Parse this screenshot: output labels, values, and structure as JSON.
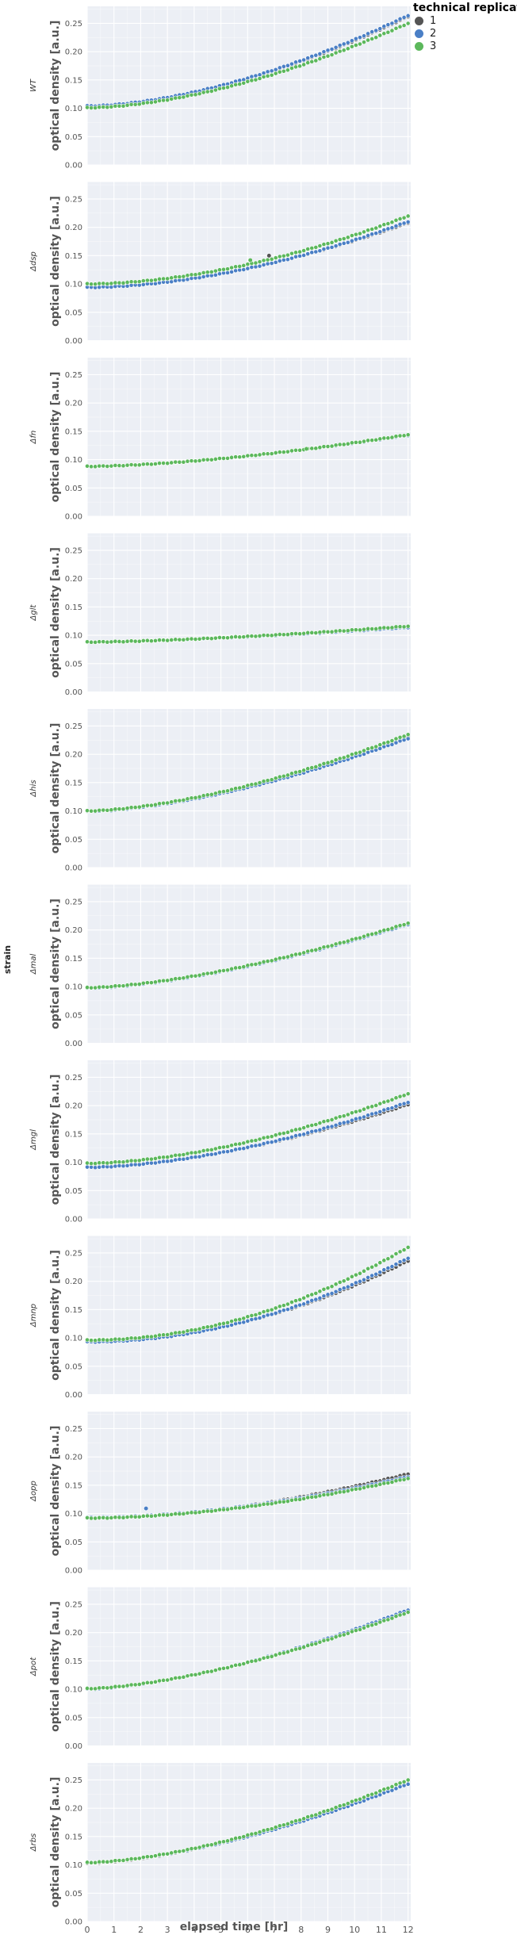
{
  "chart_data": {
    "type": "scatter",
    "facet_by": "strain",
    "xlabel": "elapsed time [hr]",
    "ylabel": "optical density [a.u.]",
    "strip_label": "strain",
    "xlim": [
      0,
      12.1
    ],
    "ylim": [
      0,
      0.28
    ],
    "x_ticks": [
      0,
      1,
      2,
      3,
      4,
      5,
      6,
      7,
      8,
      9,
      10,
      11,
      12
    ],
    "y_ticks": [
      0.0,
      0.05,
      0.1,
      0.15,
      0.2,
      0.25
    ],
    "grid": true,
    "legend": {
      "title": "technical replicate",
      "placement": "top-right",
      "entries": [
        {
          "label": "1",
          "color": "#555555"
        },
        {
          "label": "2",
          "color": "#4a7fc6"
        },
        {
          "label": "3",
          "color": "#5cb85c"
        }
      ]
    },
    "colors": {
      "panel_background": "#eceff5",
      "gridline": "#ffffff",
      "axis_text": "#555555"
    },
    "panels": [
      {
        "strain": "WT",
        "x_range": [
          0,
          12
        ],
        "series": [
          {
            "name": "1",
            "start": 0.103,
            "end": 0.262,
            "curvature": 1.7
          },
          {
            "name": "2",
            "start": 0.104,
            "end": 0.264,
            "curvature": 1.7
          },
          {
            "name": "3",
            "start": 0.101,
            "end": 0.25,
            "curvature": 1.7
          }
        ]
      },
      {
        "strain": "Δdsp",
        "x_range": [
          0,
          12
        ],
        "series": [
          {
            "name": "1",
            "start": 0.095,
            "end": 0.208,
            "curvature": 1.8
          },
          {
            "name": "2",
            "start": 0.094,
            "end": 0.21,
            "curvature": 1.8
          },
          {
            "name": "3",
            "start": 0.1,
            "end": 0.22,
            "curvature": 1.8
          }
        ],
        "outliers": [
          {
            "name": "1",
            "x": 6.8,
            "y": 0.15
          },
          {
            "name": "3",
            "x": 6.1,
            "y": 0.142
          }
        ]
      },
      {
        "strain": "Δfn",
        "x_range": [
          0,
          12
        ],
        "series": [
          {
            "name": "1",
            "start": 0.088,
            "end": 0.143,
            "curvature": 1.6
          },
          {
            "name": "2",
            "start": 0.088,
            "end": 0.143,
            "curvature": 1.6
          },
          {
            "name": "3",
            "start": 0.088,
            "end": 0.144,
            "curvature": 1.6
          }
        ],
        "outliers": [
          {
            "name": "3",
            "x": 8.2,
            "y": 0.119
          }
        ]
      },
      {
        "strain": "Δglt",
        "x_range": [
          0,
          12
        ],
        "series": [
          {
            "name": "1",
            "start": 0.088,
            "end": 0.114,
            "curvature": 1.5
          },
          {
            "name": "2",
            "start": 0.088,
            "end": 0.114,
            "curvature": 1.5
          },
          {
            "name": "3",
            "start": 0.088,
            "end": 0.116,
            "curvature": 1.5
          }
        ]
      },
      {
        "strain": "Δhis",
        "x_range": [
          0,
          12
        ],
        "series": [
          {
            "name": "1",
            "start": 0.099,
            "end": 0.23,
            "curvature": 1.6
          },
          {
            "name": "2",
            "start": 0.099,
            "end": 0.228,
            "curvature": 1.6
          },
          {
            "name": "3",
            "start": 0.1,
            "end": 0.235,
            "curvature": 1.6
          }
        ]
      },
      {
        "strain": "Δmal",
        "x_range": [
          0,
          12
        ],
        "series": [
          {
            "name": "1",
            "start": 0.097,
            "end": 0.211,
            "curvature": 1.55
          },
          {
            "name": "2",
            "start": 0.097,
            "end": 0.21,
            "curvature": 1.55
          },
          {
            "name": "3",
            "start": 0.098,
            "end": 0.212,
            "curvature": 1.55
          }
        ]
      },
      {
        "strain": "Δmgl",
        "x_range": [
          0,
          12
        ],
        "series": [
          {
            "name": "1",
            "start": 0.092,
            "end": 0.202,
            "curvature": 1.7
          },
          {
            "name": "2",
            "start": 0.091,
            "end": 0.206,
            "curvature": 1.7
          },
          {
            "name": "3",
            "start": 0.098,
            "end": 0.221,
            "curvature": 1.7
          }
        ]
      },
      {
        "strain": "Δmnp",
        "x_range": [
          0,
          12
        ],
        "series": [
          {
            "name": "1",
            "start": 0.094,
            "end": 0.236,
            "curvature": 2.0
          },
          {
            "name": "2",
            "start": 0.093,
            "end": 0.241,
            "curvature": 2.0
          },
          {
            "name": "3",
            "start": 0.096,
            "end": 0.26,
            "curvature": 2.0
          }
        ]
      },
      {
        "strain": "Δopp",
        "x_range": [
          0,
          12
        ],
        "series": [
          {
            "name": "1",
            "start": 0.092,
            "end": 0.17,
            "curvature": 1.8
          },
          {
            "name": "2",
            "start": 0.093,
            "end": 0.165,
            "curvature": 1.8
          },
          {
            "name": "3",
            "start": 0.092,
            "end": 0.162,
            "curvature": 1.8
          }
        ],
        "outliers": [
          {
            "name": "2",
            "x": 2.2,
            "y": 0.109
          }
        ]
      },
      {
        "strain": "Δpot",
        "x_range": [
          0,
          12
        ],
        "series": [
          {
            "name": "1",
            "start": 0.1,
            "end": 0.238,
            "curvature": 1.55
          },
          {
            "name": "2",
            "start": 0.1,
            "end": 0.24,
            "curvature": 1.55
          },
          {
            "name": "3",
            "start": 0.101,
            "end": 0.236,
            "curvature": 1.55
          }
        ]
      },
      {
        "strain": "Δrbs",
        "x_range": [
          0,
          12
        ],
        "series": [
          {
            "name": "1",
            "start": 0.103,
            "end": 0.244,
            "curvature": 1.6
          },
          {
            "name": "2",
            "start": 0.104,
            "end": 0.243,
            "curvature": 1.6
          },
          {
            "name": "3",
            "start": 0.104,
            "end": 0.25,
            "curvature": 1.6
          }
        ]
      }
    ]
  }
}
